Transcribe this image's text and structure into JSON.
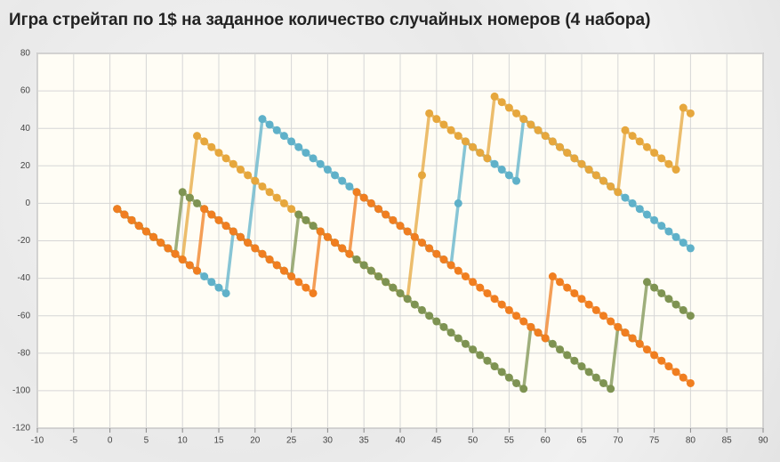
{
  "chart_data": {
    "type": "line",
    "title": "Игра стрейтап по 1$ на заданное количество случайных номеров (4 набора)",
    "x": [
      1,
      2,
      3,
      4,
      5,
      6,
      7,
      8,
      9,
      10,
      11,
      12,
      13,
      14,
      15,
      16,
      17,
      18,
      19,
      20,
      21,
      22,
      23,
      24,
      25,
      26,
      27,
      28,
      29,
      30,
      31,
      32,
      33,
      34,
      35,
      36,
      37,
      38,
      39,
      40,
      41,
      42,
      43,
      44,
      45,
      46,
      47,
      48,
      49,
      50,
      51,
      52,
      53,
      54,
      55,
      56,
      57,
      58,
      59,
      60,
      61,
      62,
      63,
      64,
      65,
      66,
      67,
      68,
      69,
      70,
      71,
      72,
      73,
      74,
      75,
      76,
      77,
      78,
      79,
      80
    ],
    "series": [
      {
        "color": "#5fb1c9",
        "values": [
          -3,
          -6,
          -9,
          -12,
          -15,
          -18,
          -21,
          -24,
          -27,
          -30,
          -33,
          -36,
          -39,
          -42,
          -45,
          -48,
          -15,
          -18,
          -21,
          12,
          45,
          42,
          39,
          36,
          33,
          30,
          27,
          24,
          21,
          18,
          15,
          12,
          9,
          6,
          3,
          0,
          -3,
          -6,
          -9,
          -12,
          -15,
          -18,
          -21,
          -24,
          -27,
          -30,
          -33,
          0,
          33,
          30,
          27,
          24,
          21,
          18,
          15,
          12,
          45,
          42,
          39,
          36,
          33,
          30,
          27,
          24,
          21,
          18,
          15,
          12,
          9,
          6,
          3,
          0,
          -3,
          -6,
          -9,
          -12,
          -15,
          -18,
          -21,
          -24
        ]
      },
      {
        "color": "#e6a73d",
        "values": [
          -3,
          -6,
          -9,
          -12,
          -15,
          -18,
          -21,
          -24,
          -27,
          -30,
          3,
          36,
          33,
          30,
          27,
          24,
          21,
          18,
          15,
          12,
          9,
          6,
          3,
          0,
          -3,
          -6,
          -9,
          -12,
          -15,
          -18,
          -21,
          -24,
          -27,
          -30,
          -33,
          -36,
          -39,
          -42,
          -45,
          -48,
          -51,
          -18,
          15,
          48,
          45,
          42,
          39,
          36,
          33,
          30,
          27,
          24,
          57,
          54,
          51,
          48,
          45,
          42,
          39,
          36,
          33,
          30,
          27,
          24,
          21,
          18,
          15,
          12,
          9,
          6,
          39,
          36,
          33,
          30,
          27,
          24,
          21,
          18,
          51,
          48
        ]
      },
      {
        "color": "#7e9352",
        "values": [
          -3,
          -6,
          -9,
          -12,
          -15,
          -18,
          -21,
          -24,
          -27,
          6,
          3,
          0,
          -3,
          -6,
          -9,
          -12,
          -15,
          -18,
          -21,
          -24,
          -27,
          -30,
          -33,
          -36,
          -39,
          -6,
          -9,
          -12,
          -15,
          -18,
          -21,
          -24,
          -27,
          -30,
          -33,
          -36,
          -39,
          -42,
          -45,
          -48,
          -51,
          -54,
          -57,
          -60,
          -63,
          -66,
          -69,
          -72,
          -75,
          -78,
          -81,
          -84,
          -87,
          -90,
          -93,
          -96,
          -99,
          -66,
          -69,
          -72,
          -75,
          -78,
          -81,
          -84,
          -87,
          -90,
          -93,
          -96,
          -99,
          -66,
          -69,
          -72,
          -75,
          -42,
          -45,
          -48,
          -51,
          -54,
          -57,
          -60
        ]
      },
      {
        "color": "#f07e20",
        "values": [
          -3,
          -6,
          -9,
          -12,
          -15,
          -18,
          -21,
          -24,
          -27,
          -30,
          -33,
          -36,
          -3,
          -6,
          -9,
          -12,
          -15,
          -18,
          -21,
          -24,
          -27,
          -30,
          -33,
          -36,
          -39,
          -42,
          -45,
          -48,
          -15,
          -18,
          -21,
          -24,
          -27,
          6,
          3,
          0,
          -3,
          -6,
          -9,
          -12,
          -15,
          -18,
          -21,
          -24,
          -27,
          -30,
          -33,
          -36,
          -39,
          -42,
          -45,
          -48,
          -51,
          -54,
          -57,
          -60,
          -63,
          -66,
          -69,
          -72,
          -39,
          -42,
          -45,
          -48,
          -51,
          -54,
          -57,
          -60,
          -63,
          -66,
          -69,
          -72,
          -75,
          -78,
          -81,
          -84,
          -87,
          -90,
          -93,
          -96
        ]
      }
    ],
    "xlim": [
      -10,
      90
    ],
    "xticks": [
      -10,
      -5,
      0,
      5,
      10,
      15,
      20,
      25,
      30,
      35,
      40,
      45,
      50,
      55,
      60,
      65,
      70,
      75,
      80,
      85,
      90
    ],
    "ylim": [
      -120,
      80
    ],
    "yticks": [
      -120,
      -100,
      -80,
      -60,
      -40,
      -20,
      0,
      20,
      40,
      60,
      80
    ],
    "grid": true
  }
}
